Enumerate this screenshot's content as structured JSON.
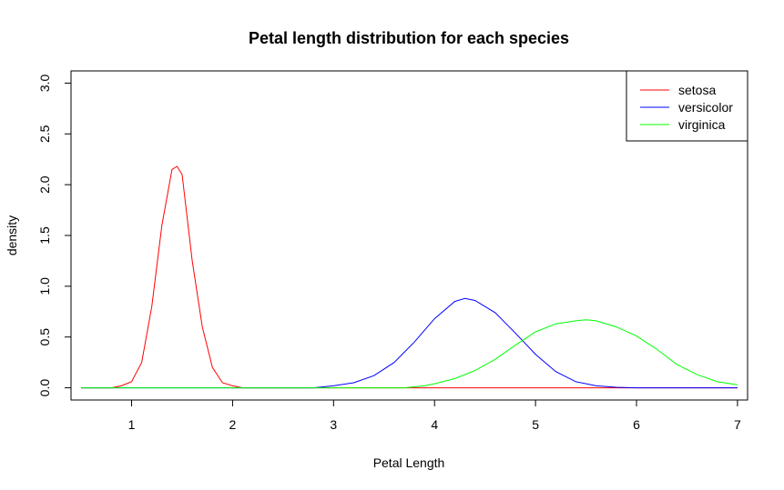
{
  "chart_data": {
    "type": "line",
    "title": "Petal length distribution for each species",
    "xlabel": "Petal Length",
    "ylabel": "density",
    "xlim": [
      0.4,
      7.1
    ],
    "ylim": [
      -0.12,
      3.12
    ],
    "x_ticks": [
      1,
      2,
      3,
      4,
      5,
      6,
      7
    ],
    "x_tick_labels": [
      "1",
      "2",
      "3",
      "4",
      "5",
      "6",
      "7"
    ],
    "y_ticks": [
      0,
      0.5,
      1,
      1.5,
      2,
      2.5,
      3
    ],
    "y_tick_labels": [
      "0.0",
      "0.5",
      "1.0",
      "1.5",
      "2.0",
      "2.5",
      "3.0"
    ],
    "grid": false,
    "legend": "top-right",
    "series": [
      {
        "name": "setosa",
        "color": "#ff0000",
        "x": [
          0.5,
          0.8,
          0.9,
          1.0,
          1.1,
          1.2,
          1.3,
          1.4,
          1.45,
          1.5,
          1.6,
          1.7,
          1.8,
          1.9,
          2.0,
          2.1,
          7.0
        ],
        "y": [
          0,
          0,
          0.02,
          0.06,
          0.25,
          0.8,
          1.6,
          2.15,
          2.18,
          2.1,
          1.25,
          0.6,
          0.2,
          0.05,
          0.02,
          0,
          0
        ]
      },
      {
        "name": "versicolor",
        "color": "#0000ff",
        "x": [
          0.5,
          2.8,
          3.0,
          3.2,
          3.4,
          3.6,
          3.8,
          4.0,
          4.2,
          4.3,
          4.4,
          4.6,
          4.8,
          5.0,
          5.2,
          5.4,
          5.6,
          5.8,
          6.0,
          7.0
        ],
        "y": [
          0,
          0,
          0.02,
          0.05,
          0.12,
          0.25,
          0.45,
          0.68,
          0.85,
          0.88,
          0.86,
          0.74,
          0.54,
          0.33,
          0.16,
          0.06,
          0.02,
          0.005,
          0,
          0
        ]
      },
      {
        "name": "virginica",
        "color": "#00ff00",
        "x": [
          0.5,
          3.7,
          3.9,
          4.0,
          4.2,
          4.4,
          4.6,
          4.8,
          5.0,
          5.2,
          5.4,
          5.5,
          5.6,
          5.8,
          6.0,
          6.2,
          6.4,
          6.6,
          6.8,
          7.0
        ],
        "y": [
          0,
          0,
          0.02,
          0.04,
          0.09,
          0.17,
          0.28,
          0.42,
          0.55,
          0.63,
          0.66,
          0.67,
          0.66,
          0.6,
          0.51,
          0.38,
          0.23,
          0.13,
          0.06,
          0.03
        ]
      }
    ]
  }
}
